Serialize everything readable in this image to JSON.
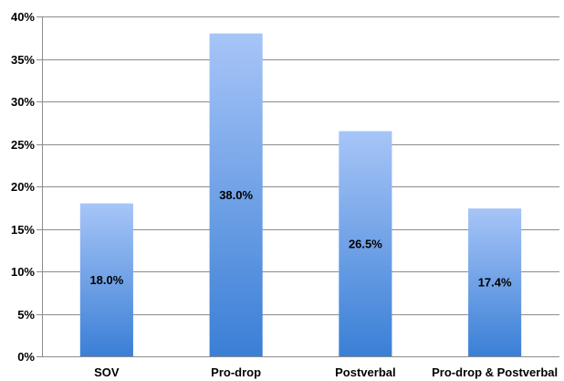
{
  "chart_data": {
    "type": "bar",
    "categories": [
      "SOV",
      "Pro-drop",
      "Postverbal",
      "Pro-drop & Postverbal"
    ],
    "values": [
      18.0,
      38.0,
      26.5,
      17.4
    ],
    "data_labels": [
      "18.0%",
      "38.0%",
      "26.5%",
      "17.4%"
    ],
    "title": "",
    "xlabel": "",
    "ylabel": "",
    "ylim": [
      0,
      40
    ],
    "yticks": [
      0,
      5,
      10,
      15,
      20,
      25,
      30,
      35,
      40
    ],
    "ytick_labels": [
      "0%",
      "5%",
      "10%",
      "15%",
      "20%",
      "25%",
      "30%",
      "35%",
      "40%"
    ],
    "grid": true,
    "legend": "none",
    "colors": {
      "bar_top": "#a7c5f7",
      "bar_bottom": "#3a7fd6",
      "grid": "#8c8c8c"
    }
  }
}
